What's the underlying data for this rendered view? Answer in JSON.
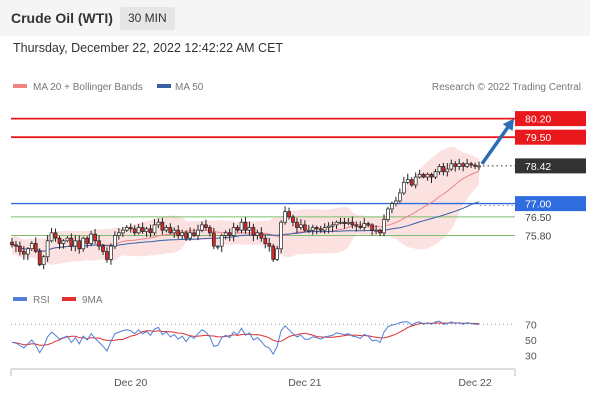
{
  "header": {
    "title": "Crude Oil (WTI)",
    "timeframe": "30 MIN",
    "timestamp": "Thursday, December 22, 2022 12:42:22 AM CET"
  },
  "legend": {
    "ma20": "MA 20 + Bollinger Bands",
    "ma50": "MA 50",
    "credit": "Research © 2022 Trading Central"
  },
  "rsi_legend": {
    "rsi": "RSI",
    "ma": "9MA"
  },
  "colors": {
    "red": "#e8181c",
    "blue": "#2f6ce0",
    "green": "#7cbf6a",
    "ma20": "#f08484",
    "ma50": "#3a5fa8",
    "bollinger": "#fbdcdc",
    "bull": "#ffffff",
    "bear": "#d62a2a",
    "wick": "#222222",
    "arrow": "#2d6db5",
    "rsi": "#4f7fd6",
    "rsi_ma": "#e03030",
    "current_box": "#333333"
  },
  "chart_data": [
    {
      "type": "candlestick",
      "x_axis": {
        "ticks": [
          "Dec 20",
          "Dec 21",
          "Dec 22"
        ],
        "dec20_index": 30,
        "dec21_index": 74,
        "dec22_index": 117
      },
      "ylim": [
        74.2,
        80.9
      ],
      "levels": [
        {
          "label": "80.20",
          "value": 80.2,
          "style": "resistance",
          "color": "#e8181c",
          "box": true
        },
        {
          "label": "79.50",
          "value": 79.5,
          "style": "resistance",
          "color": "#e8181c",
          "box": true
        },
        {
          "label": "78.42",
          "value": 78.42,
          "style": "current",
          "color": "#333333",
          "box": true
        },
        {
          "label": "77.00",
          "value": 77.0,
          "style": "pivot",
          "color": "#2f6ce0",
          "box": true
        },
        {
          "label": "76.50",
          "value": 76.5,
          "style": "support",
          "color": "#7cbf6a",
          "box": false
        },
        {
          "label": "75.80",
          "value": 75.8,
          "style": "support",
          "color": "#7cbf6a",
          "box": false
        }
      ],
      "projection": {
        "from": 78.42,
        "to": 80.2
      },
      "closes": [
        75.45,
        75.4,
        75.2,
        75.1,
        75.3,
        75.5,
        75.2,
        74.7,
        75.0,
        75.6,
        75.9,
        75.7,
        75.5,
        75.6,
        75.7,
        75.4,
        75.6,
        75.3,
        75.7,
        75.5,
        75.85,
        75.6,
        75.4,
        75.2,
        74.9,
        75.4,
        75.8,
        75.9,
        76.0,
        76.1,
        76.05,
        75.9,
        76.1,
        75.95,
        76.05,
        75.9,
        76.2,
        76.3,
        76.0,
        76.1,
        75.9,
        76.0,
        75.8,
        75.9,
        75.7,
        75.9,
        75.8,
        76.0,
        76.2,
        76.1,
        75.9,
        75.4,
        75.4,
        75.8,
        75.9,
        75.8,
        76.1,
        76.0,
        76.3,
        76.0,
        76.1,
        75.8,
        75.9,
        75.7,
        75.5,
        75.4,
        74.9,
        75.3,
        76.3,
        76.7,
        76.5,
        76.3,
        76.1,
        76.2,
        76.0,
        76.0,
        76.1,
        76.05,
        76.0,
        76.1,
        76.15,
        76.2,
        76.3,
        76.3,
        76.25,
        76.3,
        76.2,
        76.15,
        76.1,
        76.25,
        76.2,
        76.0,
        76.0,
        75.9,
        76.4,
        76.8,
        77.0,
        77.1,
        77.4,
        77.8,
        77.9,
        77.7,
        78.0,
        78.1,
        78.0,
        78.1,
        78.0,
        78.2,
        78.4,
        78.2,
        78.3,
        78.5,
        78.4,
        78.5,
        78.4,
        78.5,
        78.45,
        78.4,
        78.42
      ]
    },
    {
      "type": "line",
      "title": "RSI",
      "ylim": [
        22,
        78
      ],
      "y_ticks": [
        70,
        50,
        30
      ],
      "series": [
        {
          "name": "RSI",
          "values": [
            47,
            46,
            43,
            40,
            45,
            50,
            43,
            34,
            42,
            54,
            60,
            56,
            51,
            53,
            55,
            47,
            53,
            45,
            55,
            50,
            58,
            52,
            47,
            42,
            36,
            48,
            58,
            60,
            62,
            63,
            62,
            58,
            63,
            58,
            61,
            56,
            64,
            66,
            57,
            60,
            54,
            57,
            51,
            55,
            48,
            55,
            52,
            58,
            63,
            60,
            54,
            42,
            43,
            53,
            56,
            53,
            60,
            57,
            65,
            56,
            59,
            50,
            53,
            48,
            42,
            40,
            32,
            42,
            62,
            68,
            63,
            58,
            54,
            56,
            51,
            51,
            54,
            53,
            51,
            54,
            55,
            56,
            59,
            58,
            57,
            58,
            55,
            54,
            52,
            57,
            55,
            49,
            50,
            47,
            60,
            67,
            69,
            70,
            72,
            73,
            73,
            69,
            72,
            73,
            70,
            72,
            70,
            73,
            74,
            70,
            71,
            73,
            71,
            72,
            70,
            72,
            71,
            70,
            70
          ]
        },
        {
          "name": "9MA",
          "values": [
            47,
            46.5,
            45.3,
            44,
            44.2,
            45.2,
            44.9,
            43.4,
            43.3,
            44.1,
            45.8,
            48.4,
            50.1,
            52.6,
            54,
            54.8,
            54.8,
            53,
            52.9,
            51.7,
            52.9,
            52.4,
            52.5,
            50.3,
            49.7,
            49.4,
            49.6,
            50.6,
            50.6,
            52.7,
            54.9,
            55.8,
            58.2,
            60.6,
            61.7,
            61.7,
            61,
            61.6,
            60.9,
            60.8,
            60.6,
            59.8,
            58.8,
            58.5,
            57,
            55.4,
            54.6,
            54.9,
            55.4,
            56.1,
            55.3,
            55.1,
            53.9,
            54.1,
            54.4,
            55.6,
            56.6,
            55.8,
            56.9,
            57.2,
            57.5,
            56.6,
            56.9,
            55.8,
            54.4,
            52.8,
            49.6,
            48.2,
            48.4,
            51.2,
            54.3,
            55.8,
            56.7,
            57.9,
            58.6,
            57.5,
            56.2,
            54.3,
            53.9,
            53.6,
            53.5,
            53.5,
            54.1,
            54.8,
            55.6,
            56.4,
            56.2,
            56.3,
            55.6,
            55.6,
            55.3,
            54.3,
            53.6,
            52.7,
            52.7,
            54.0,
            55.6,
            57.4,
            60.1,
            62.8,
            66.0,
            67.8,
            69.4,
            70.9,
            71.1,
            71.4,
            71.2,
            71.6,
            71.5,
            71.6,
            71.4,
            71.7,
            71.8,
            71.6,
            71.4,
            71.3,
            71.1,
            71.1,
            70.9
          ]
        }
      ]
    }
  ]
}
